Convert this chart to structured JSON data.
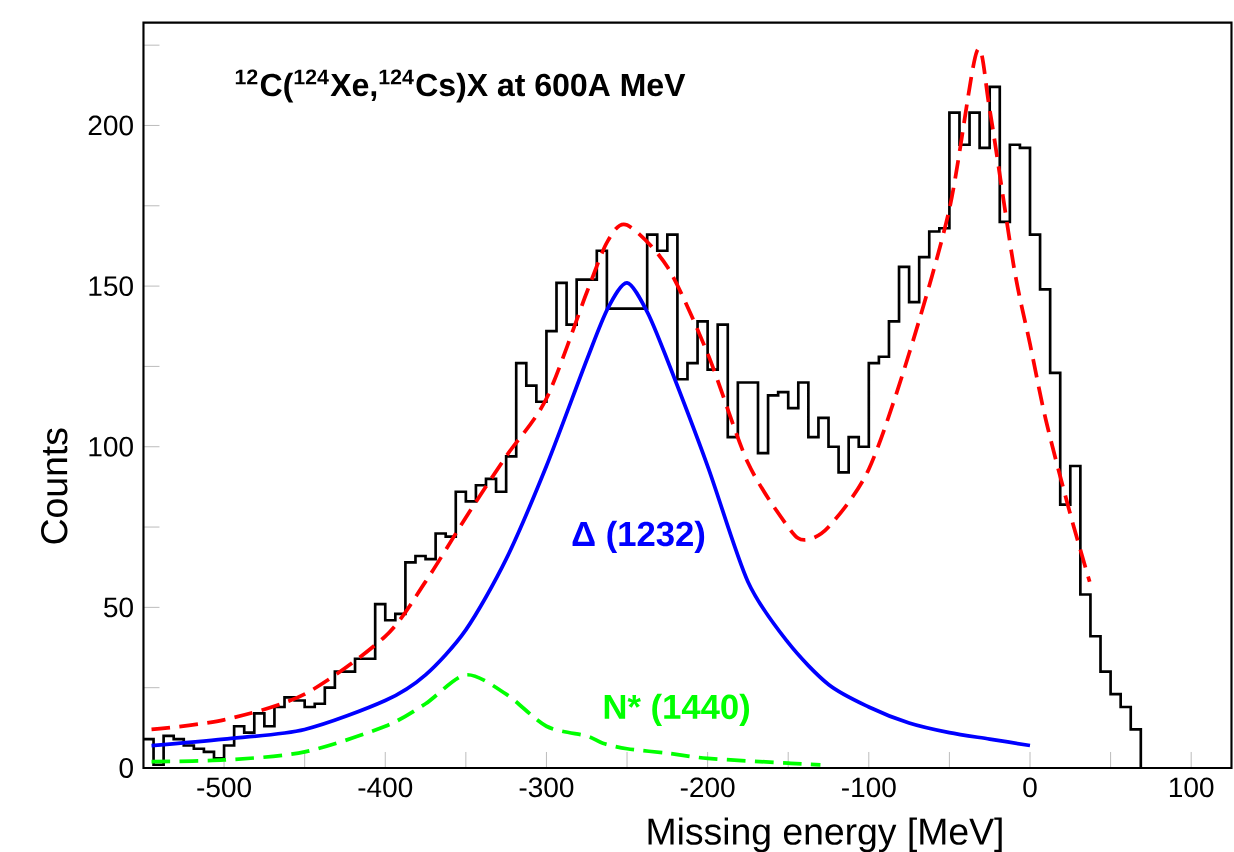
{
  "chart_data": {
    "type": "histogram",
    "title": "$^{12}$C($^{124}$Xe,$^{124}$Cs)X at 600A MeV",
    "xlabel": "Missing energy [MeV]",
    "ylabel": "Counts",
    "color": "#000000",
    "bins": [
      -550,
      -543.75,
      -537.5,
      -531.25,
      -525,
      -518.75,
      -512.5,
      -506.25,
      -500,
      -493.75,
      -487.5,
      -481.25,
      -475,
      -468.75,
      -462.5,
      -456.25,
      -450,
      -443.75,
      -437.5,
      -431.25,
      -425,
      -418.75,
      -412.5,
      -406.25,
      -400,
      -393.75,
      -387.5,
      -381.25,
      -375,
      -368.75,
      -362.5,
      -356.25,
      -350,
      -343.75,
      -337.5,
      -331.25,
      -325,
      -318.75,
      -312.5,
      -306.25,
      -300,
      -293.75,
      -287.5,
      -281.25,
      -275,
      -268.75,
      -262.5,
      -256.25,
      -250,
      -243.75,
      -237.5,
      -231.25,
      -225,
      -218.75,
      -212.5,
      -206.25,
      -200,
      -193.75,
      -187.5,
      -181.25,
      -175,
      -168.75,
      -162.5,
      -156.25,
      -150,
      -143.75,
      -137.5,
      -131.25,
      -125,
      -118.75,
      -112.5,
      -106.25,
      -100,
      -93.75,
      -87.5,
      -81.25,
      -75,
      -68.75,
      -62.5,
      -56.25,
      -50,
      -43.75,
      -37.5,
      -31.25,
      -25,
      -18.75,
      -12.5,
      -6.25,
      0,
      6.25,
      12.5,
      18.75,
      25,
      31.25,
      37.5,
      43.75,
      50,
      56.25,
      62.5,
      68.75
    ],
    "values": [
      9,
      1,
      10,
      9,
      7,
      6,
      5,
      3,
      7,
      13,
      11,
      17,
      13,
      19,
      22,
      21,
      19,
      20,
      25,
      30,
      30,
      34,
      34,
      51,
      46,
      48,
      64,
      66,
      65,
      73,
      72,
      86,
      83,
      88,
      90,
      86,
      97,
      126,
      119,
      114,
      136,
      151,
      138,
      152,
      152,
      161,
      143,
      143,
      143,
      143,
      166,
      161,
      166,
      121,
      126,
      139,
      124,
      138,
      103,
      120,
      120,
      98,
      116,
      117,
      112,
      120,
      103,
      109,
      100,
      92,
      103,
      100,
      126,
      128,
      139,
      156,
      145,
      159,
      167,
      168,
      204,
      194,
      204,
      193,
      212,
      170,
      194,
      193,
      166,
      149,
      123,
      82,
      94,
      54,
      41,
      30,
      23,
      19,
      12
    ],
    "series": [
      {
        "type": "line",
        "color": "#ff0000",
        "line_style": "dashed",
        "x": [
          -545,
          -500,
          -450,
          -400,
          -375,
          -350,
          -325,
          -300,
          -275,
          -262,
          -250,
          -225,
          -200,
          -175,
          -150,
          -140,
          -125,
          -100,
          -75,
          -50,
          -33,
          -25,
          -10,
          0,
          10,
          25,
          37
        ],
        "values": [
          12,
          15,
          23,
          41,
          58,
          78,
          97,
          115,
          148,
          164,
          169,
          156,
          129,
          95,
          75,
          71,
          75,
          93,
          129,
          174,
          223,
          205,
          156,
          132,
          108,
          79,
          58
        ]
      },
      {
        "type": "line",
        "name": "Δ (1232)",
        "color": "#0000ff",
        "line_style": "solid",
        "x": [
          -545,
          -500,
          -450,
          -400,
          -375,
          -350,
          -325,
          -300,
          -275,
          -262,
          -250,
          -237.5,
          -225,
          -200,
          -175,
          -150,
          -125,
          -100,
          -75,
          -50,
          -25,
          0
        ],
        "values": [
          7,
          9,
          12,
          21,
          29,
          43,
          65,
          94,
          127,
          143,
          151,
          142,
          127,
          94,
          58,
          39,
          26,
          19,
          14,
          11,
          9,
          7
        ]
      },
      {
        "type": "line",
        "name": "N* (1440)",
        "color": "#00ff00",
        "line_style": "dashed",
        "x": [
          -545,
          -500,
          -450,
          -400,
          -375,
          -350,
          -325,
          -300,
          -275,
          -265,
          -250,
          -225,
          -200,
          -150,
          -130
        ],
        "values": [
          2,
          2.5,
          5,
          13,
          20,
          29,
          23,
          13,
          10,
          7.7,
          6,
          4.6,
          3,
          1.5,
          1
        ]
      }
    ],
    "xlim": [
      -550,
      125
    ],
    "ylim": [
      0,
      232
    ],
    "xticks": [
      -500,
      {
        "value": -450,
        "label": null
      },
      -400,
      {
        "value": -350,
        "label": null
      },
      -300,
      {
        "value": -250,
        "label": null
      },
      -200,
      {
        "value": -150,
        "label": null
      },
      -100,
      {
        "value": -50,
        "label": null
      },
      0,
      {
        "value": 50,
        "label": null
      },
      100
    ],
    "yticks": [
      0,
      {
        "value": 25,
        "label": null
      },
      50,
      {
        "value": 75,
        "label": null
      },
      100,
      {
        "value": 125,
        "label": null
      },
      150,
      {
        "value": 175,
        "label": null
      },
      200,
      {
        "value": 225,
        "label": null
      }
    ]
  }
}
